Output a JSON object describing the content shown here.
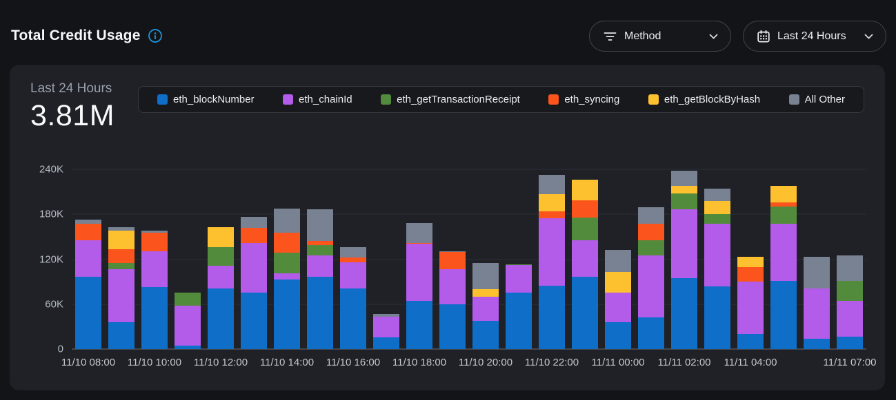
{
  "header": {
    "title": "Total Credit Usage",
    "info_icon": "info-circle-icon",
    "method_filter": {
      "label": "Method",
      "icon": "filter-icon"
    },
    "time_filter": {
      "label": "Last 24 Hours",
      "icon": "calendar-icon"
    }
  },
  "panel": {
    "period_label": "Last 24 Hours",
    "total_value": "3.81M"
  },
  "colors": {
    "accent_blue": "#1e9be6",
    "page_bg": "#131418",
    "panel_bg": "#1f2127"
  },
  "chart_data": {
    "type": "bar",
    "stacked": true,
    "title": "Total Credit Usage",
    "subtitle": "Last 24 Hours",
    "total_label": "3.81M",
    "ylim": [
      0,
      240000
    ],
    "grid": true,
    "legend_position": "top",
    "yticks": [
      {
        "value": 0,
        "label": "0"
      },
      {
        "value": 60000,
        "label": "60K"
      },
      {
        "value": 120000,
        "label": "120K"
      },
      {
        "value": 180000,
        "label": "180K"
      },
      {
        "value": 240000,
        "label": "240K"
      }
    ],
    "x": [
      "11/10 08:00",
      "11/10 09:00",
      "11/10 10:00",
      "11/10 11:00",
      "11/10 12:00",
      "11/10 13:00",
      "11/10 14:00",
      "11/10 15:00",
      "11/10 16:00",
      "11/10 17:00",
      "11/10 18:00",
      "11/10 19:00",
      "11/10 20:00",
      "11/10 21:00",
      "11/10 22:00",
      "11/10 23:00",
      "11/11 00:00",
      "11/11 01:00",
      "11/11 02:00",
      "11/11 03:00",
      "11/11 04:00",
      "11/11 05:00",
      "11/11 06:00",
      "11/11 07:00"
    ],
    "visible_xtick_indices": [
      0,
      2,
      4,
      6,
      8,
      10,
      12,
      14,
      16,
      18,
      20,
      23
    ],
    "series": [
      {
        "name": "eth_blockNumber",
        "color": "#0e6ec8",
        "values": [
          97000,
          36000,
          83000,
          5000,
          81000,
          75000,
          93000,
          97000,
          81000,
          16000,
          64000,
          60000,
          38000,
          75000,
          85000,
          97000,
          36000,
          42000,
          95000,
          84000,
          20000,
          91000,
          14000,
          17000
        ]
      },
      {
        "name": "eth_chainId",
        "color": "#b35cea",
        "values": [
          48000,
          71000,
          48000,
          53000,
          30000,
          67000,
          8000,
          28000,
          35000,
          27000,
          77000,
          47000,
          32000,
          37000,
          90000,
          48000,
          39000,
          83000,
          92000,
          83000,
          70000,
          76000,
          67000,
          47000
        ]
      },
      {
        "name": "eth_getTransactionReceipt",
        "color": "#538b3c",
        "values": [
          0,
          8000,
          0,
          17000,
          25000,
          0,
          28000,
          14000,
          0,
          0,
          0,
          0,
          0,
          1000,
          0,
          31000,
          0,
          20000,
          21000,
          13000,
          0,
          23000,
          0,
          27000
        ]
      },
      {
        "name": "eth_syncing",
        "color": "#fb541d",
        "values": [
          22000,
          18000,
          24000,
          0,
          0,
          20000,
          26000,
          5000,
          6000,
          0,
          1000,
          23000,
          0,
          0,
          9000,
          23000,
          0,
          22000,
          0,
          0,
          19000,
          6000,
          0,
          0
        ]
      },
      {
        "name": "eth_getBlockByHash",
        "color": "#fdc130",
        "values": [
          0,
          25000,
          0,
          0,
          27000,
          0,
          0,
          0,
          0,
          0,
          0,
          0,
          10000,
          0,
          23000,
          27000,
          28000,
          0,
          10000,
          18000,
          14000,
          22000,
          0,
          0
        ]
      },
      {
        "name": "All Other",
        "color": "#798292",
        "values": [
          6000,
          5000,
          3000,
          0,
          0,
          15000,
          33000,
          43000,
          14000,
          4000,
          26000,
          1000,
          35000,
          0,
          26000,
          0,
          29000,
          22000,
          20000,
          16000,
          0,
          0,
          42000,
          34000
        ]
      }
    ]
  }
}
